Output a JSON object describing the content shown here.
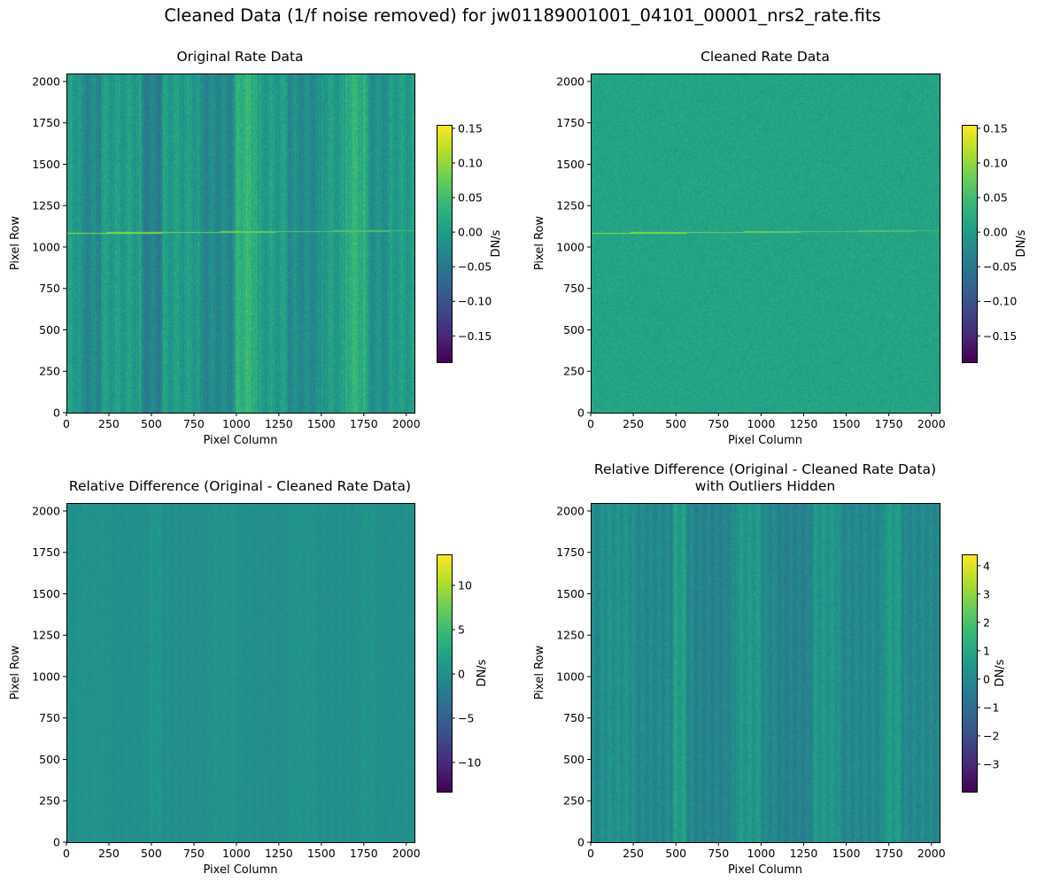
{
  "figure": {
    "suptitle": "Cleaned Data (1/f noise removed) for jw01189001001_04101_00001_nrs2_rate.fits"
  },
  "chart_data": [
    {
      "type": "heatmap",
      "title": "Original Rate Data",
      "xlabel": "Pixel Column",
      "ylabel": "Pixel Row",
      "xlim": [
        0,
        2048
      ],
      "ylim": [
        0,
        2048
      ],
      "xticks": [
        "0",
        "250",
        "500",
        "750",
        "1000",
        "1250",
        "1500",
        "1750",
        "2000"
      ],
      "yticks": [
        "0",
        "250",
        "500",
        "750",
        "1000",
        "1250",
        "1500",
        "1750",
        "2000"
      ],
      "colormap": "viridis",
      "colorbar": {
        "label": "DN/s",
        "range": [
          -0.188,
          0.155
        ],
        "ticks": [
          0.15,
          0.1,
          0.05,
          0.0,
          -0.05,
          -0.1,
          -0.15
        ],
        "tick_labels": [
          "0.15",
          "0.10",
          "0.05",
          "0.00",
          "−0.05",
          "−0.10",
          "−0.15"
        ]
      }
    },
    {
      "type": "heatmap",
      "title": "Cleaned Rate Data",
      "xlabel": "Pixel Column",
      "ylabel": "Pixel Row",
      "xlim": [
        0,
        2048
      ],
      "ylim": [
        0,
        2048
      ],
      "xticks": [
        "0",
        "250",
        "500",
        "750",
        "1000",
        "1250",
        "1500",
        "1750",
        "2000"
      ],
      "yticks": [
        "0",
        "250",
        "500",
        "750",
        "1000",
        "1250",
        "1500",
        "1750",
        "2000"
      ],
      "colormap": "viridis",
      "colorbar": {
        "label": "DN/s",
        "range": [
          -0.188,
          0.155
        ],
        "ticks": [
          0.15,
          0.1,
          0.05,
          0.0,
          -0.05,
          -0.1,
          -0.15
        ],
        "tick_labels": [
          "0.15",
          "0.10",
          "0.05",
          "0.00",
          "−0.05",
          "−0.10",
          "−0.15"
        ]
      }
    },
    {
      "type": "heatmap",
      "title": "Relative Difference (Original - Cleaned Rate Data)",
      "xlabel": "Pixel Column",
      "ylabel": "Pixel Row",
      "xlim": [
        0,
        2048
      ],
      "ylim": [
        0,
        2048
      ],
      "xticks": [
        "0",
        "250",
        "500",
        "750",
        "1000",
        "1250",
        "1500",
        "1750",
        "2000"
      ],
      "yticks": [
        "0",
        "250",
        "500",
        "750",
        "1000",
        "1250",
        "1500",
        "1750",
        "2000"
      ],
      "colormap": "viridis",
      "colorbar": {
        "label": "DN/s",
        "range": [
          -13.3,
          13.5
        ],
        "ticks": [
          10,
          5,
          0,
          -5,
          -10
        ],
        "tick_labels": [
          "10",
          "5",
          "0",
          "−5",
          "−10"
        ]
      }
    },
    {
      "type": "heatmap",
      "title": "Relative Difference (Original - Cleaned Rate Data)",
      "title_line2": "with Outliers Hidden",
      "xlabel": "Pixel Column",
      "ylabel": "Pixel Row",
      "xlim": [
        0,
        2048
      ],
      "ylim": [
        0,
        2048
      ],
      "xticks": [
        "0",
        "250",
        "500",
        "750",
        "1000",
        "1250",
        "1500",
        "1750",
        "2000"
      ],
      "yticks": [
        "0",
        "250",
        "500",
        "750",
        "1000",
        "1250",
        "1500",
        "1750",
        "2000"
      ],
      "colormap": "viridis",
      "colorbar": {
        "label": "DN/s",
        "range": [
          -3.97,
          4.4
        ],
        "ticks": [
          4,
          3,
          2,
          1,
          0,
          -1,
          -2,
          -3
        ],
        "tick_labels": [
          "4",
          "3",
          "2",
          "1",
          "0",
          "−1",
          "−2",
          "−3"
        ]
      }
    }
  ]
}
